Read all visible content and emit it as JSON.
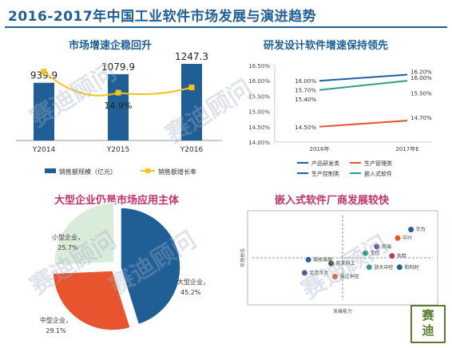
{
  "header": {
    "title": "2016-2017年中国工业软件市场发展与演进趋势"
  },
  "watermark": "赛迪顾问",
  "logo": {
    "line1": "赛",
    "line2": "迪"
  },
  "colors": {
    "navy": "#1f5f96",
    "gold": "#f6c21b",
    "blue_line": "#1f5fa8",
    "red_line": "#e8542e",
    "teal_line": "#2f9e87",
    "pink_title": "#c0336b",
    "light_green": "#d9ebd9",
    "dark_green": "#5b7d2f"
  },
  "chart_data": [
    {
      "type": "bar",
      "title": "市场增速企稳回升",
      "categories": [
        "Y2014",
        "Y2015",
        "Y2016"
      ],
      "series": [
        {
          "name": "销售额规模（亿元）",
          "values": [
            939.9,
            1079.9,
            1247.3
          ],
          "value_labels": [
            "939.9",
            "1079.9",
            "1247.3"
          ]
        },
        {
          "name": "销售额增长率",
          "type": "line",
          "values": [
            17.3,
            14.9,
            15.5
          ],
          "value_labels": [
            "",
            "14.9%",
            ""
          ]
        }
      ],
      "legend": "bottom"
    },
    {
      "type": "line",
      "title": "研发设计软件增速保持领先",
      "x": [
        "2016年",
        "2017年E"
      ],
      "ylim": [
        14.0,
        16.5
      ],
      "yticks": [
        "16.50%",
        "16.00%",
        "15.50%",
        "15.00%",
        "14.50%",
        "14.00%"
      ],
      "series": [
        {
          "name": "产品研发类",
          "values": [
            16.0,
            16.2
          ],
          "labels": [
            "16.00%",
            "16.20%"
          ]
        },
        {
          "name": "生产管理类",
          "values": [
            14.5,
            14.7
          ],
          "labels": [
            "14.50%",
            "14.70%"
          ]
        },
        {
          "name": "生产控制类",
          "values": [
            15.4,
            15.5
          ],
          "labels": [
            "15.40%",
            "15.50%"
          ]
        },
        {
          "name": "嵌入式软件",
          "values": [
            15.7,
            16.0
          ],
          "labels": [
            "15.70%",
            "16.00%"
          ]
        }
      ],
      "legend": "bottom"
    },
    {
      "type": "pie",
      "title": "大型企业仍是市场应用主体",
      "slices": [
        {
          "name": "大型企业",
          "value": 45.2,
          "label": "45.2%"
        },
        {
          "name": "中型企业",
          "value": 29.1,
          "label": "29.1%"
        },
        {
          "name": "小型企业",
          "value": 25.7,
          "label": "25.7%"
        }
      ]
    },
    {
      "type": "scatter",
      "title": "嵌入式软件厂商发展较快",
      "xlabel": "发展能力",
      "ylabel": "市场地位",
      "points": [
        {
          "name": "华为",
          "x": 0.86,
          "y": 0.8
        },
        {
          "name": "中兴",
          "x": 0.79,
          "y": 0.71
        },
        {
          "name": "南瑞",
          "x": 0.68,
          "y": 0.62
        },
        {
          "name": "宝信",
          "x": 0.62,
          "y": 0.55
        },
        {
          "name": "东软",
          "x": 0.76,
          "y": 0.52
        },
        {
          "name": "和利时",
          "x": 0.8,
          "y": 0.4
        },
        {
          "name": "浙大中控",
          "x": 0.64,
          "y": 0.4
        },
        {
          "name": "航天科工",
          "x": 0.44,
          "y": 0.44
        },
        {
          "name": "南京南瑞",
          "x": 0.32,
          "y": 0.48
        },
        {
          "name": "浙江中控",
          "x": 0.46,
          "y": 0.3
        },
        {
          "name": "北京华大",
          "x": 0.3,
          "y": 0.34
        }
      ]
    }
  ]
}
